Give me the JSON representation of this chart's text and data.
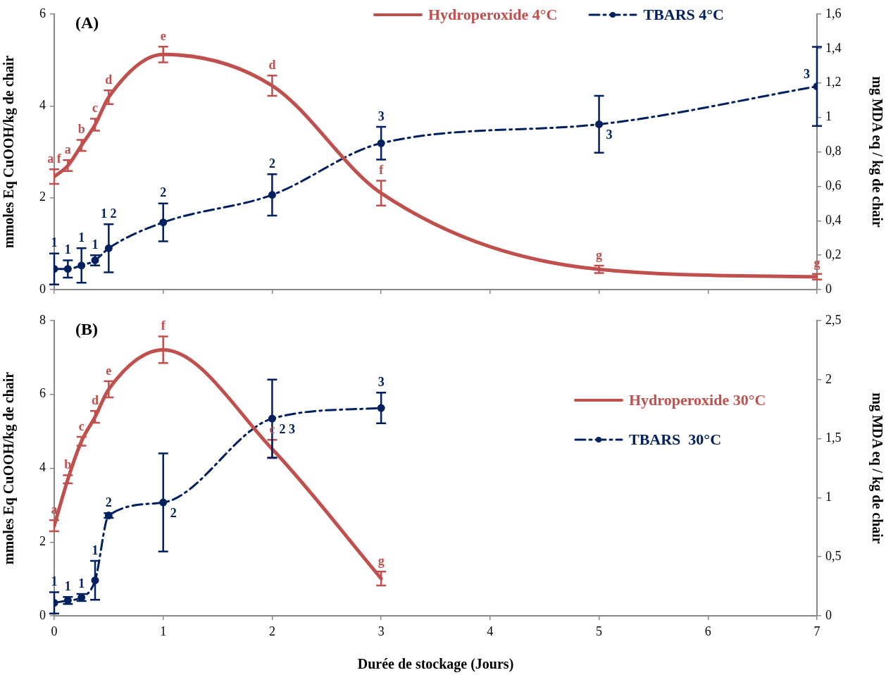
{
  "chart_data": [
    {
      "type": "line",
      "title": "(A)",
      "ylabel": "mmoles Eq CuOOH/kg de chair",
      "y2label": "mg MDA eq / kg de chair",
      "legend": "top",
      "tick_labels": "y",
      "x": [
        0,
        0.125,
        0.25,
        0.375,
        0.5,
        1,
        2,
        3,
        5,
        7
      ],
      "xlim": [
        0,
        7
      ],
      "xticks": [
        0,
        1,
        2,
        3,
        4,
        5,
        6,
        7
      ],
      "ylim": [
        0,
        6
      ],
      "yticks": [
        0,
        2,
        4,
        6
      ],
      "y2lim": [
        0,
        1.6
      ],
      "y2ticks": [
        0,
        {
          "value": 0.2,
          "label": "0,2"
        },
        {
          "value": 0.4,
          "label": "0,4"
        },
        {
          "value": 0.6,
          "label": "0,6"
        },
        {
          "value": 0.8,
          "label": "0,8"
        },
        1,
        {
          "value": 1.2,
          "label": "1,2"
        },
        {
          "value": 1.4,
          "label": "1,4"
        },
        {
          "value": 1.6,
          "label": "1,6"
        }
      ],
      "series": [
        {
          "name": "Hydroperoxide 4°C",
          "color": "#c0504d",
          "line_style": "solid",
          "values": [
            2.46,
            2.7,
            3.14,
            3.59,
            4.19,
            5.12,
            4.44,
            2.1,
            0.44,
            0.28
          ],
          "errors": [
            0.16,
            0.12,
            0.12,
            0.13,
            0.15,
            0.17,
            0.22,
            0.27,
            0.08,
            0.06
          ]
        },
        {
          "name": "TBARS 4°C",
          "color": "#002060",
          "marker": "circle",
          "line_style": "dashed",
          "axis": "y2",
          "values": [
            0.12,
            0.12,
            0.14,
            0.17,
            0.24,
            0.39,
            0.55,
            0.85,
            0.96,
            1.18
          ],
          "errors": [
            0.09,
            0.05,
            0.1,
            0.03,
            0.14,
            0.11,
            0.12,
            0.095,
            0.165,
            0.23
          ]
        }
      ],
      "annotations": [
        {
          "text": "a f",
          "x": 0,
          "y": 2.46
        },
        {
          "text": "a",
          "x": 0.125,
          "y": 2.7
        },
        {
          "text": "b",
          "x": 0.25,
          "y": 3.14
        },
        {
          "text": "c",
          "x": 0.375,
          "y": 3.59
        },
        {
          "text": "d",
          "x": 0.5,
          "y": 4.19
        },
        {
          "text": "e",
          "x": 1,
          "y": 5.12
        },
        {
          "text": "d",
          "x": 2,
          "y": 4.44
        },
        {
          "text": "f",
          "x": 3,
          "y": 2.1
        },
        {
          "text": "g",
          "x": 5,
          "y": 0.44
        },
        {
          "text": "g",
          "x": 7,
          "y": 0.28
        },
        {
          "text": "1",
          "x": 0,
          "y": 0.45
        },
        {
          "text": "1",
          "x": 0.125,
          "y": 0.45
        },
        {
          "text": "1",
          "x": 0.25,
          "y": 0.525
        },
        {
          "text": "1",
          "x": 0.375,
          "y": 0.6375
        },
        {
          "text": "1 2",
          "x": 0.5,
          "y": 0.9
        },
        {
          "text": "2",
          "x": 1,
          "y": 1.4625
        },
        {
          "text": "2",
          "x": 2,
          "y": 2.0625
        },
        {
          "text": "3",
          "x": 3,
          "y": 3.1875
        },
        {
          "text": "3",
          "x": 5,
          "y": 3.6
        },
        {
          "text": "3",
          "x": 7,
          "y": 4.425
        }
      ]
    },
    {
      "type": "line",
      "title": "(B)",
      "xlabel": "Durée de stockage (Jours)",
      "ylabel": "mmoles Eq CuOOH/kg de chair",
      "y2label": "mg MDA eq / kg de chair",
      "legend": "right",
      "x": [
        0,
        0.125,
        0.25,
        0.375,
        0.5,
        1,
        2,
        3
      ],
      "xlim": [
        0,
        7
      ],
      "xticks": [
        0,
        1,
        2,
        3,
        4,
        5,
        6,
        7
      ],
      "ylim": [
        0,
        8
      ],
      "yticks": [
        0,
        2,
        4,
        6,
        8
      ],
      "y2lim": [
        0,
        2.5
      ],
      "y2ticks": [
        0,
        {
          "value": 0.5,
          "label": "0,5"
        },
        1,
        {
          "value": 1.5,
          "label": "1,5"
        },
        2,
        {
          "value": 2.5,
          "label": "2,5"
        }
      ],
      "series": [
        {
          "name": "Hydroperoxide 30°C",
          "color": "#c0504d",
          "line_style": "solid",
          "values": [
            2.44,
            3.7,
            4.73,
            5.39,
            6.14,
            7.21,
            4.52,
            1.01
          ],
          "errors": [
            0.15,
            0.11,
            0.12,
            0.16,
            0.22,
            0.36,
            0.25,
            0.19
          ]
        },
        {
          "name": "TBARS  30°C",
          "color": "#002060",
          "marker": "circle",
          "line_style": "dashed",
          "axis": "y2",
          "values": [
            0.11,
            0.13,
            0.155,
            0.3,
            0.85,
            0.96,
            1.67,
            1.76
          ],
          "errors": [
            0.09,
            0.03,
            0.03,
            0.165,
            0.02,
            0.415,
            0.33,
            0.13
          ]
        }
      ],
      "annotations": [
        {
          "text": "a",
          "x": 0,
          "y": 2.44
        },
        {
          "text": "b",
          "x": 0.125,
          "y": 3.7
        },
        {
          "text": "c",
          "x": 0.25,
          "y": 4.73
        },
        {
          "text": "d",
          "x": 0.375,
          "y": 5.39
        },
        {
          "text": "e",
          "x": 0.5,
          "y": 6.14
        },
        {
          "text": "f",
          "x": 1,
          "y": 7.21
        },
        {
          "text": "c",
          "x": 2,
          "y": 4.52
        },
        {
          "text": "g",
          "x": 3,
          "y": 1.01
        },
        {
          "text": "1",
          "x": 0,
          "y": 0.352
        },
        {
          "text": "1",
          "x": 0.125,
          "y": 0.416
        },
        {
          "text": "1",
          "x": 0.25,
          "y": 0.496
        },
        {
          "text": "1",
          "x": 0.375,
          "y": 0.96
        },
        {
          "text": "2",
          "x": 0.5,
          "y": 2.72
        },
        {
          "text": "2",
          "x": 1,
          "y": 3.072
        },
        {
          "text": "2 3",
          "x": 2,
          "y": 5.344
        },
        {
          "text": "3",
          "x": 3,
          "y": 5.632
        }
      ]
    }
  ]
}
